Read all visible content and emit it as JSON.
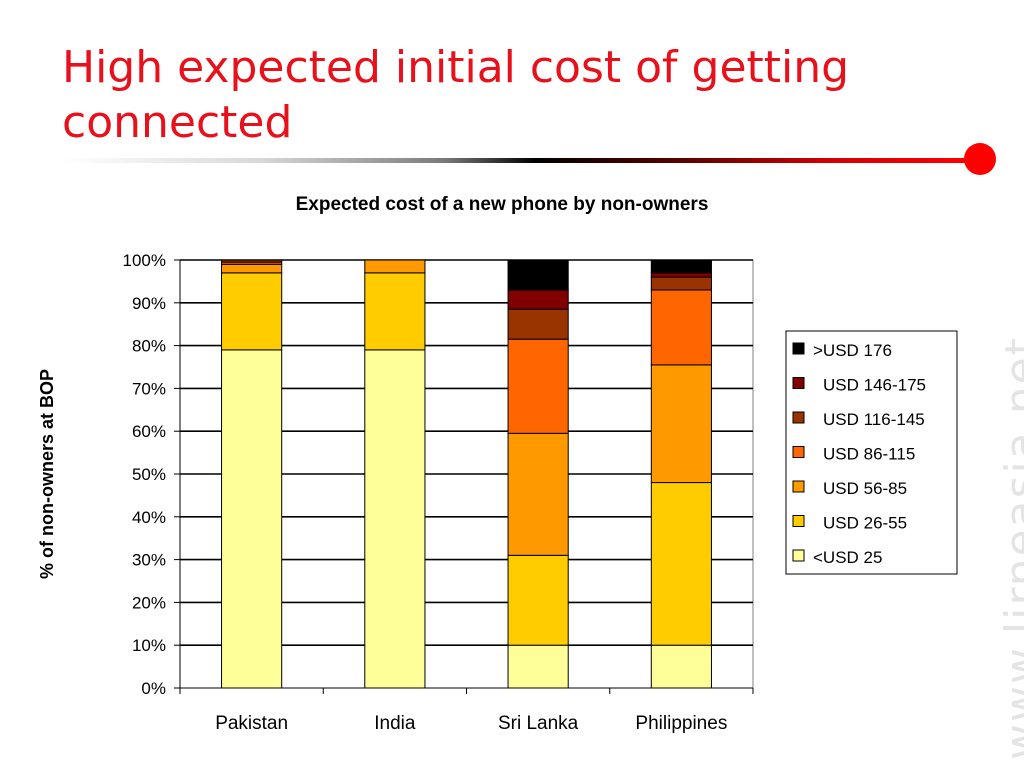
{
  "slide": {
    "title": "High expected initial cost of getting connected",
    "watermark": "www.lirneasia.net"
  },
  "chart_data": {
    "type": "bar",
    "stacked": true,
    "title": "Expected cost of a new phone by non-owners",
    "xlabel": "",
    "ylabel": "% of non-owners at BOP",
    "ylim": [
      0,
      100
    ],
    "y_ticks": [
      "0%",
      "10%",
      "20%",
      "30%",
      "40%",
      "50%",
      "60%",
      "70%",
      "80%",
      "90%",
      "100%"
    ],
    "grid": true,
    "legend_position": "right",
    "categories": [
      "Pakistan",
      "India",
      "Sri Lanka",
      "Philippines"
    ],
    "series": [
      {
        "name": "<USD 25",
        "color": "#ffff99",
        "values": [
          79,
          79,
          10,
          10
        ]
      },
      {
        "name": "USD 26-55",
        "color": "#ffcc00",
        "values": [
          18,
          18,
          21,
          38
        ]
      },
      {
        "name": "USD 56-85",
        "color": "#ff9900",
        "values": [
          2,
          3,
          28.5,
          27.5
        ]
      },
      {
        "name": "USD 86-115",
        "color": "#ff6600",
        "values": [
          0.5,
          0,
          22,
          17.5
        ]
      },
      {
        "name": "USD 116-145",
        "color": "#993300",
        "values": [
          0.5,
          0,
          7,
          3
        ]
      },
      {
        "name": "USD 146-175",
        "color": "#800000",
        "values": [
          0,
          0,
          4.5,
          1
        ]
      },
      {
        "name": ">USD 176",
        "color": "#000000",
        "values": [
          0,
          0,
          7,
          3
        ]
      }
    ]
  }
}
